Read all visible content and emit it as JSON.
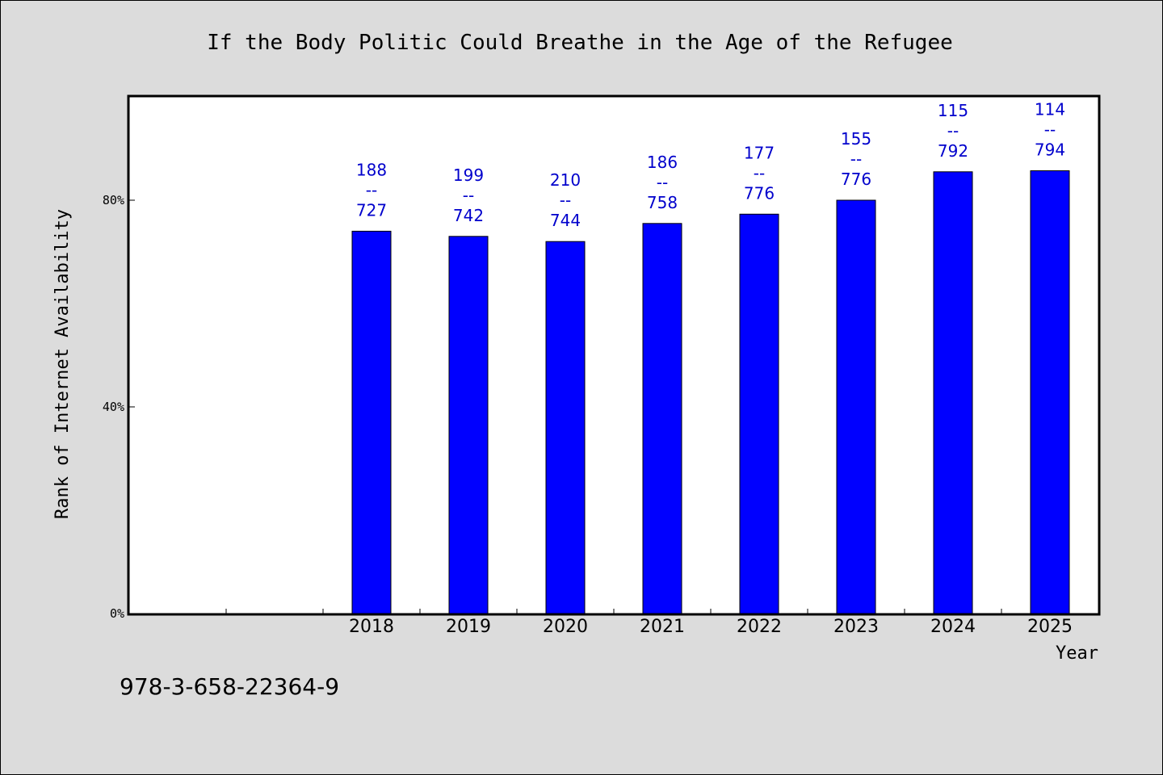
{
  "chart_data": {
    "type": "bar",
    "title": "If the Body Politic Could Breathe in the Age of the Refugee",
    "xlabel": "Year",
    "ylabel": "Rank of Internet Availability",
    "categories": [
      "",
      "",
      "2018",
      "2019",
      "2020",
      "2021",
      "2022",
      "2023",
      "2024",
      "2025"
    ],
    "values": [
      null,
      null,
      74,
      73,
      72,
      75.5,
      77.3,
      80,
      85.5,
      85.7
    ],
    "bar_labels": [
      null,
      null,
      {
        "top": "188",
        "sep": "--",
        "bottom": "727"
      },
      {
        "top": "199",
        "sep": "--",
        "bottom": "742"
      },
      {
        "top": "210",
        "sep": "--",
        "bottom": "744"
      },
      {
        "top": "186",
        "sep": "--",
        "bottom": "758"
      },
      {
        "top": "177",
        "sep": "--",
        "bottom": "776"
      },
      {
        "top": "155",
        "sep": "--",
        "bottom": "776"
      },
      {
        "top": "115",
        "sep": "--",
        "bottom": "792"
      },
      {
        "top": "114",
        "sep": "--",
        "bottom": "794"
      }
    ],
    "ylim": [
      0,
      100
    ],
    "yticks": [
      0,
      40,
      80
    ],
    "ytick_labels": [
      "0%",
      "40%",
      "80%"
    ],
    "grid": false,
    "bar_color": "#0000ff",
    "label_color": "#0000cc",
    "plot_background": "#ffffff",
    "page_background": "#dcdcdc"
  },
  "footer": {
    "isbn": "978-3-658-22364-9"
  }
}
